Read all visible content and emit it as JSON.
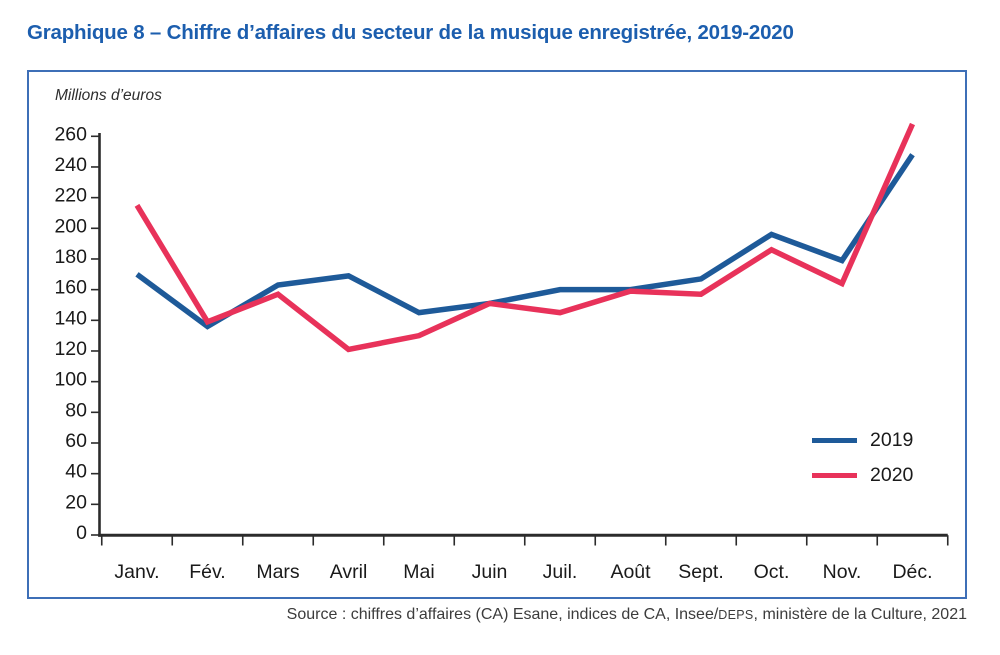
{
  "page": {
    "title": "Graphique 8 – Chiffre d’affaires du secteur de la musique enregistrée, 2019-2020",
    "source": {
      "prefix": "Source : chiffres d’affaires (CA) Esane, indices de CA, Insee/",
      "smallcaps": "DEPS",
      "suffix": ", ministère de la Culture, 2021"
    }
  },
  "colors": {
    "title_blue": "#1c5eae",
    "panel_border_blue": "#3e6fb7",
    "axis": "#2b2b2b",
    "tick_text": "#1a1a1a",
    "series_2019": "#1e5a99",
    "series_2020": "#e8325a"
  },
  "chart_data": {
    "type": "line",
    "title": "Graphique 8 – Chiffre d’affaires du secteur de la musique enregistrée, 2019-2020",
    "unit_label": "Millions d’euros",
    "xlabel": "",
    "ylabel": "Millions d’euros",
    "categories": [
      "Janv.",
      "Fév.",
      "Mars",
      "Avril",
      "Mai",
      "Juin",
      "Juil.",
      "Août",
      "Sept.",
      "Oct.",
      "Nov.",
      "Déc."
    ],
    "series": [
      {
        "name": "2019",
        "color": "#1e5a99",
        "values": [
          170,
          136,
          163,
          169,
          145,
          151,
          160,
          160,
          167,
          196,
          179,
          248
        ]
      },
      {
        "name": "2020",
        "color": "#e8325a",
        "values": [
          215,
          139,
          157,
          121,
          130,
          151,
          145,
          159,
          157,
          186,
          164,
          268
        ]
      }
    ],
    "ylim": [
      0,
      260
    ],
    "ytick_step": 20,
    "grid": false,
    "legend_position": "right-middle"
  }
}
